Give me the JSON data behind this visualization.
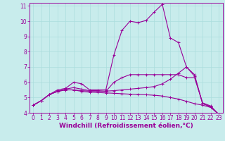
{
  "background_color": "#c8ecec",
  "line_color": "#990099",
  "grid_color": "#aadddd",
  "xlabel": "Windchill (Refroidissement éolien,°C)",
  "xlim": [
    -0.5,
    23.5
  ],
  "ylim": [
    4,
    11.2
  ],
  "xticks": [
    0,
    1,
    2,
    3,
    4,
    5,
    6,
    7,
    8,
    9,
    10,
    11,
    12,
    13,
    14,
    15,
    16,
    17,
    18,
    19,
    20,
    21,
    22,
    23
  ],
  "yticks": [
    4,
    5,
    6,
    7,
    8,
    9,
    10,
    11
  ],
  "series": [
    {
      "x": [
        0,
        1,
        2,
        3,
        4,
        5,
        6,
        7,
        8,
        9,
        10,
        11,
        12,
        13,
        14,
        15,
        16,
        17,
        18,
        19,
        20,
        21,
        22,
        23
      ],
      "y": [
        4.5,
        4.8,
        5.2,
        5.5,
        5.6,
        6.0,
        5.9,
        5.5,
        5.5,
        5.5,
        7.8,
        9.4,
        10.0,
        9.9,
        10.05,
        10.6,
        11.1,
        8.9,
        8.6,
        7.0,
        6.4,
        4.6,
        4.4,
        3.9
      ]
    },
    {
      "x": [
        0,
        1,
        2,
        3,
        4,
        5,
        6,
        7,
        8,
        9,
        10,
        11,
        12,
        13,
        14,
        15,
        16,
        17,
        18,
        19,
        20,
        21,
        22,
        23
      ],
      "y": [
        4.5,
        4.8,
        5.2,
        5.4,
        5.5,
        5.5,
        5.45,
        5.42,
        5.42,
        5.42,
        5.45,
        5.5,
        5.55,
        5.6,
        5.65,
        5.72,
        5.9,
        6.2,
        6.6,
        7.0,
        6.5,
        4.6,
        4.4,
        3.9
      ]
    },
    {
      "x": [
        0,
        1,
        2,
        3,
        4,
        5,
        6,
        7,
        8,
        9,
        10,
        11,
        12,
        13,
        14,
        15,
        16,
        17,
        18,
        19,
        20,
        21,
        22,
        23
      ],
      "y": [
        4.5,
        4.8,
        5.2,
        5.4,
        5.5,
        5.5,
        5.4,
        5.35,
        5.33,
        5.3,
        5.28,
        5.25,
        5.22,
        5.2,
        5.18,
        5.15,
        5.1,
        5.0,
        4.9,
        4.75,
        4.6,
        4.5,
        4.35,
        3.9
      ]
    },
    {
      "x": [
        0,
        1,
        2,
        3,
        4,
        5,
        6,
        7,
        8,
        9,
        10,
        11,
        12,
        13,
        14,
        15,
        16,
        17,
        18,
        19,
        20,
        21,
        22,
        23
      ],
      "y": [
        4.5,
        4.8,
        5.2,
        5.4,
        5.55,
        5.65,
        5.55,
        5.45,
        5.45,
        5.4,
        6.0,
        6.3,
        6.5,
        6.5,
        6.5,
        6.5,
        6.5,
        6.5,
        6.5,
        6.3,
        6.3,
        4.65,
        4.45,
        3.9
      ]
    }
  ],
  "tick_fontsize": 5.5,
  "label_fontsize": 6.5
}
